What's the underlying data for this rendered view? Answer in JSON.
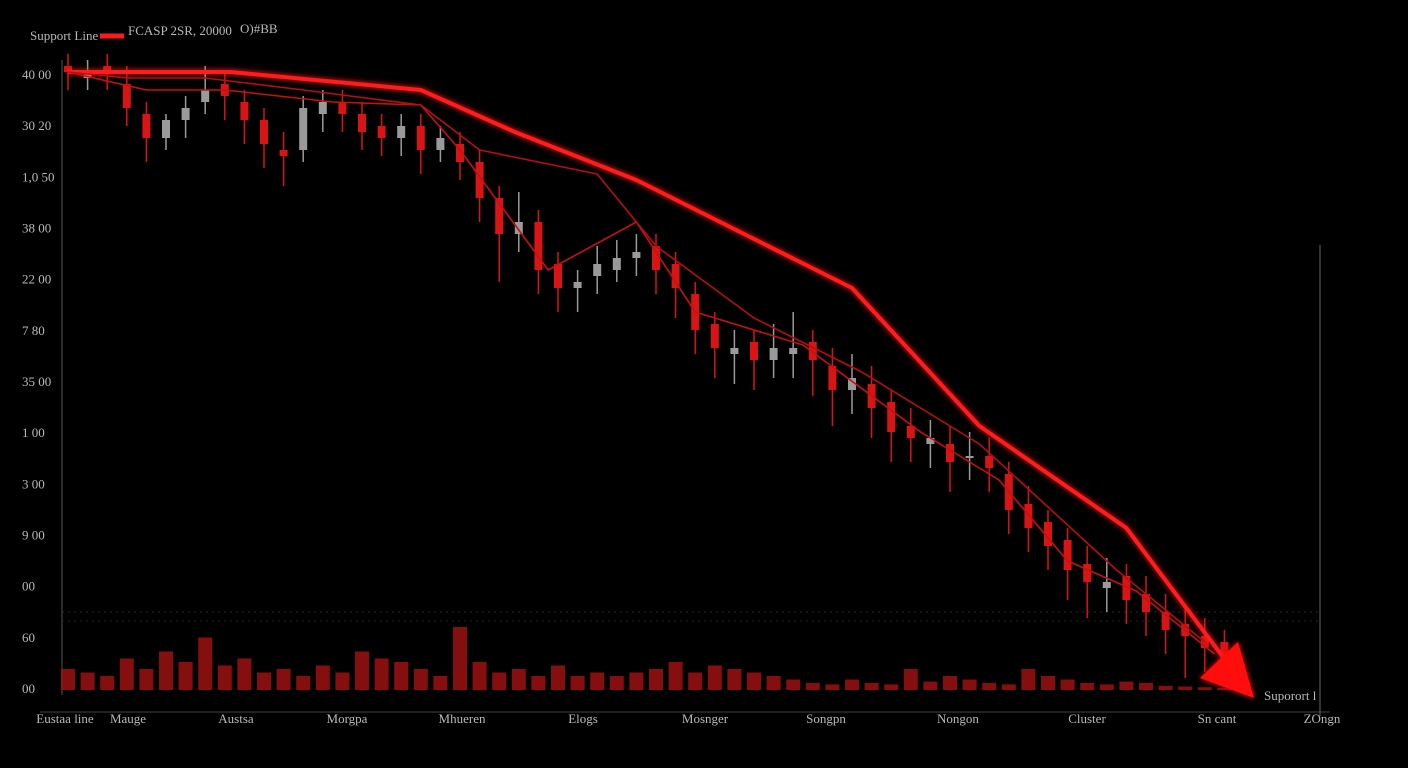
{
  "chart_data": {
    "type": "candlestick",
    "legend_label": "Support Line",
    "header_text": "FCASP 2SR, 20000",
    "header_extra": "O)#BB",
    "annotation": "Suporort l",
    "y_tick_labels": [
      "40 00",
      "30 20",
      "1,0 50",
      "38 00",
      "22 00",
      "7 80",
      "35 00",
      "1 00",
      "3 00",
      "9 00",
      "00",
      "60",
      "00"
    ],
    "x_labels": [
      "Eustaa line",
      "Mauge",
      "Austsa",
      "Morgpa",
      "Mhueren",
      "Elogs",
      "Mosnger",
      "Songpn",
      "Nongon",
      "Cluster",
      "Sn cant",
      "ZOngn"
    ],
    "ylim": [
      0,
      105
    ],
    "up_color": "#9a9a9a",
    "down_color": "#d81414",
    "open": [
      104,
      102,
      104,
      101,
      96,
      92,
      95,
      98,
      101,
      98,
      95,
      90,
      90,
      96,
      98,
      96,
      94,
      92,
      94,
      90,
      91,
      88,
      82,
      76,
      78,
      71,
      67,
      69,
      70,
      72,
      74,
      71,
      66,
      61,
      56,
      58,
      55,
      56,
      58,
      54,
      50,
      51,
      48,
      44,
      41,
      41,
      39,
      39,
      36,
      31,
      28,
      25,
      21,
      17,
      19,
      16,
      13,
      11,
      9,
      8
    ],
    "high": [
      106,
      105,
      106,
      104,
      98,
      96,
      99,
      104,
      103,
      100,
      97,
      93,
      99,
      100,
      100,
      98,
      96,
      96,
      96,
      94,
      93,
      90,
      84,
      83,
      80,
      73,
      70,
      74,
      75,
      76,
      76,
      73,
      68,
      63,
      60,
      60,
      61,
      63,
      60,
      57,
      56,
      54,
      50,
      47,
      45,
      44,
      43,
      42,
      38,
      34,
      30,
      27,
      24,
      22,
      21,
      19,
      16,
      14,
      12,
      10
    ],
    "low": [
      100,
      100,
      100,
      94,
      88,
      90,
      92,
      96,
      95,
      91,
      87,
      84,
      88,
      93,
      93,
      90,
      89,
      89,
      86,
      88,
      85,
      78,
      68,
      73,
      66,
      63,
      63,
      66,
      68,
      69,
      66,
      62,
      56,
      52,
      51,
      50,
      52,
      52,
      49,
      44,
      46,
      42,
      38,
      38,
      37,
      33,
      35,
      33,
      26,
      23,
      20,
      15,
      12,
      13,
      11,
      9,
      6,
      2,
      3,
      1
    ],
    "close": [
      103,
      103,
      103,
      97,
      92,
      95,
      97,
      100,
      99,
      95,
      91,
      89,
      97,
      98,
      96,
      93,
      92,
      94,
      90,
      92,
      88,
      82,
      76,
      78,
      70,
      67,
      68,
      71,
      72,
      73,
      70,
      67,
      60,
      57,
      57,
      55,
      57,
      57,
      55,
      50,
      52,
      47,
      43,
      42,
      42,
      38,
      39,
      37,
      30,
      27,
      24,
      20,
      18,
      18,
      15,
      13,
      10,
      9,
      7,
      5
    ],
    "volume": [
      30,
      25,
      20,
      45,
      30,
      55,
      40,
      75,
      35,
      45,
      25,
      30,
      20,
      35,
      25,
      55,
      45,
      40,
      30,
      20,
      90,
      40,
      25,
      30,
      20,
      35,
      20,
      25,
      20,
      25,
      30,
      40,
      25,
      35,
      30,
      25,
      20,
      15,
      10,
      8,
      15,
      10,
      8,
      30,
      12,
      20,
      15,
      10,
      8,
      30,
      20,
      15,
      10,
      8,
      12,
      10,
      6,
      5,
      4,
      3
    ],
    "volume_lim": [
      0,
      100
    ],
    "volume_color": "#9c1010",
    "lines": [
      {
        "color": "#ff1a1a",
        "width": 4,
        "x": [
          0,
          2.7,
          8.3,
          18,
          22.8,
          29,
          34.8,
          40,
          46.5,
          54,
          59.5
        ],
        "values": [
          103,
          103,
          103,
          100,
          93,
          85,
          75.5,
          67,
          44,
          27,
          3
        ]
      },
      {
        "color": "#c81010",
        "width": 1.6,
        "x": [
          0,
          4,
          8,
          13.5,
          18,
          20,
          24.5,
          29,
          32,
          37.5,
          43.5,
          47.5,
          51,
          54.5,
          58.5
        ],
        "values": [
          103,
          100,
          100,
          98,
          97.5,
          90,
          70,
          78,
          63,
          57.5,
          43,
          35,
          21.5,
          16.5,
          6
        ]
      },
      {
        "color": "#b80e0e",
        "width": 1.6,
        "x": [
          0,
          3,
          7,
          12,
          18,
          21,
          27,
          30,
          35,
          40.5,
          46.5,
          49.5,
          53.5,
          58
        ],
        "values": [
          103,
          102,
          102,
          100,
          97.5,
          90,
          86,
          74,
          62,
          53,
          41,
          32,
          20,
          8
        ]
      }
    ]
  }
}
